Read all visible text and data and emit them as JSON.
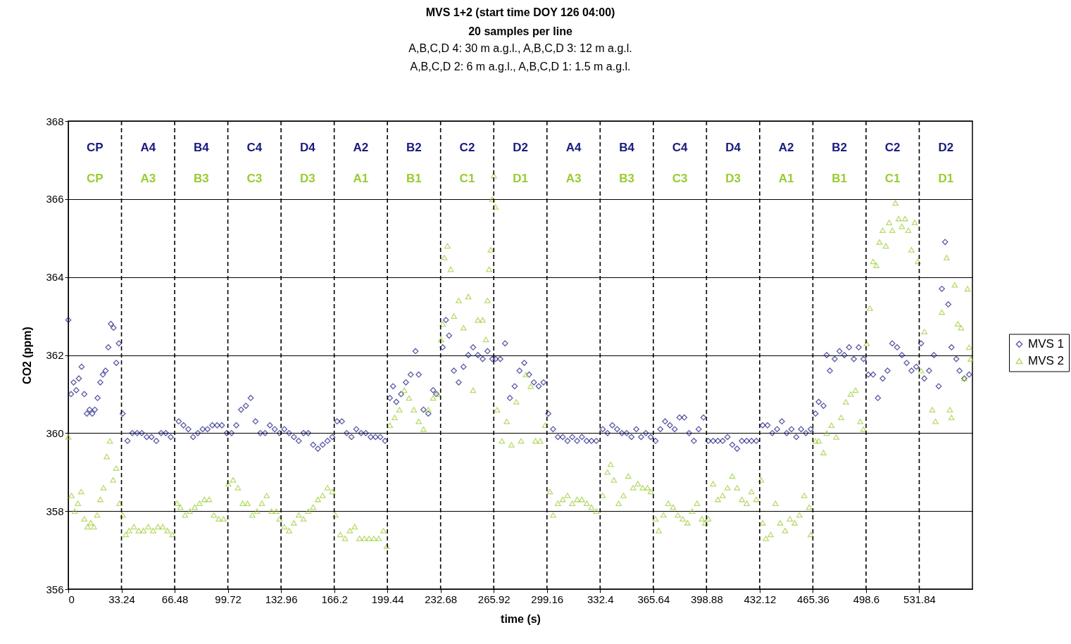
{
  "chart_data": {
    "type": "scatter",
    "title": "MVS 1+2 (start time DOY 126 04:00)\n20 samples per line",
    "subtitle": "A,B,C,D 4: 30 m a.g.l., A,B,C,D 3: 12 m a.g.l.\nA,B,C,D 2: 6 m a.g.l., A,B,C,D 1: 1.5 m a.g.l.",
    "xlabel": "time (s)",
    "ylabel": "CO2 (ppm)",
    "xlim": [
      0,
      565.08
    ],
    "ylim": [
      356,
      368
    ],
    "xticks": [
      0,
      33.24,
      66.48,
      99.72,
      132.96,
      166.2,
      199.44,
      232.68,
      265.92,
      299.16,
      332.4,
      365.64,
      398.88,
      432.12,
      465.36,
      498.6,
      531.84
    ],
    "yticks": [
      356,
      358,
      360,
      362,
      364,
      366,
      368
    ],
    "grid": "y",
    "legend": "right",
    "series": [
      {
        "name": "MVS 1",
        "color": "#1a1a80",
        "marker": "diamond",
        "x": [
          0,
          1.7,
          3.3,
          5,
          6.6,
          8.3,
          10,
          11.6,
          13.3,
          15,
          16.6,
          18.3,
          20,
          21.6,
          23.3,
          25,
          26.6,
          28.3,
          30,
          31.6,
          34,
          37,
          40,
          43,
          46,
          49,
          52,
          55,
          58,
          61,
          64,
          69,
          72,
          75,
          78,
          81,
          84,
          87,
          90,
          93,
          96,
          99,
          102,
          105,
          108,
          111,
          114,
          117,
          120,
          123,
          126,
          129,
          132,
          135,
          138,
          141,
          144,
          147,
          150,
          153,
          156,
          159,
          162,
          165,
          168,
          171,
          174,
          177,
          180,
          183,
          186,
          189,
          192,
          195,
          198,
          201,
          203,
          205,
          208,
          211,
          214,
          217,
          219,
          222,
          225,
          228,
          230,
          234,
          236,
          238,
          241,
          244,
          247,
          250,
          253,
          256,
          259,
          262,
          265,
          267,
          270,
          273,
          276,
          279,
          282,
          285,
          288,
          291,
          294,
          297,
          300,
          303,
          306,
          309,
          312,
          315,
          318,
          321,
          324,
          327,
          330,
          334,
          337,
          340,
          343,
          346,
          349,
          352,
          355,
          358,
          361,
          364,
          367,
          370,
          373,
          376,
          379,
          382,
          385,
          388,
          391,
          394,
          397,
          400,
          403,
          406,
          409,
          412,
          415,
          418,
          421,
          424,
          427,
          430,
          434,
          437,
          440,
          443,
          446,
          449,
          452,
          455,
          458,
          461,
          464,
          467,
          469,
          472,
          474,
          476,
          479,
          482,
          485,
          488,
          491,
          494,
          497,
          500,
          503,
          506,
          509,
          512,
          515,
          518,
          521,
          524,
          527,
          530,
          533,
          535,
          538,
          541,
          544,
          546,
          548,
          550,
          552,
          555,
          557,
          560,
          563
        ],
        "values": [
          362.9,
          361,
          361.3,
          361.1,
          361.4,
          361.7,
          361,
          360.5,
          360.6,
          360.5,
          360.6,
          360.9,
          361.3,
          361.5,
          361.6,
          362.2,
          362.8,
          362.7,
          361.8,
          362.3,
          360.5,
          359.8,
          360,
          360,
          360,
          359.9,
          359.9,
          359.8,
          360,
          360,
          359.9,
          360.3,
          360.2,
          360.1,
          359.9,
          360,
          360.1,
          360.1,
          360.2,
          360.2,
          360.2,
          360,
          360,
          360.2,
          360.6,
          360.7,
          360.9,
          360.3,
          360,
          360,
          360.2,
          360.1,
          360,
          360.1,
          360,
          359.9,
          359.8,
          360,
          360,
          359.7,
          359.6,
          359.7,
          359.8,
          359.9,
          360.3,
          360.3,
          360,
          359.9,
          360.1,
          360,
          360,
          359.9,
          359.9,
          359.9,
          359.8,
          360.9,
          361.2,
          360.8,
          361,
          361.3,
          361.5,
          362.1,
          361.5,
          360.6,
          360.5,
          361.1,
          361,
          362.2,
          362.9,
          362.5,
          361.6,
          361.3,
          361.7,
          362,
          362.2,
          362,
          361.9,
          362.1,
          361.9,
          361.9,
          361.9,
          362.3,
          360.9,
          361.2,
          361.6,
          361.8,
          361.5,
          361.3,
          361.2,
          361.3,
          360.5,
          360.1,
          359.9,
          359.9,
          359.8,
          359.9,
          359.8,
          359.9,
          359.8,
          359.8,
          359.8,
          360.1,
          360,
          360.2,
          360.1,
          360,
          360,
          359.9,
          360.1,
          359.9,
          360,
          359.9,
          359.8,
          360.1,
          360.3,
          360.2,
          360.1,
          360.4,
          360.4,
          360,
          359.8,
          360.1,
          360.4,
          359.8,
          359.8,
          359.8,
          359.8,
          359.9,
          359.7,
          359.6,
          359.8,
          359.8,
          359.8,
          359.8,
          360.2,
          360.2,
          360,
          360.1,
          360.3,
          360,
          360.1,
          359.9,
          360.1,
          360,
          360.1,
          360.5,
          360.8,
          360.7,
          362,
          361.6,
          361.9,
          362.1,
          362,
          362.2,
          361.9,
          362.2,
          361.9,
          361.5,
          361.5,
          360.9,
          361.4,
          361.6,
          362.3,
          362.2,
          362,
          361.8,
          361.6,
          361.7,
          362.3,
          361.4,
          361.6,
          362,
          361.2,
          363.7,
          364.9,
          363.3,
          362.2,
          361.9,
          361.6,
          361.4,
          361.5
        ]
      },
      {
        "name": "MVS 2",
        "color": "#99cc33",
        "marker": "triangle",
        "x": [
          0,
          2,
          4,
          6,
          8,
          10,
          12,
          14,
          16,
          18,
          20,
          22,
          24,
          26,
          28,
          30,
          32,
          34,
          36,
          38,
          41,
          44,
          47,
          50,
          53,
          56,
          59,
          62,
          65,
          68,
          70,
          73,
          76,
          79,
          82,
          85,
          88,
          91,
          94,
          97,
          100,
          103,
          106,
          109,
          112,
          115,
          118,
          121,
          124,
          127,
          130,
          132,
          135,
          138,
          141,
          144,
          147,
          150,
          153,
          156,
          159,
          162,
          165,
          167,
          170,
          173,
          176,
          179,
          182,
          185,
          188,
          191,
          194,
          197,
          199,
          201,
          204,
          207,
          210,
          213,
          216,
          219,
          222,
          225,
          228,
          231,
          233,
          234,
          235,
          237,
          239,
          241,
          244,
          247,
          250,
          253,
          256,
          259,
          261,
          262,
          263,
          264,
          265,
          266,
          267,
          268,
          271,
          274,
          277,
          280,
          283,
          286,
          289,
          292,
          295,
          298,
          301,
          303,
          306,
          309,
          312,
          315,
          318,
          321,
          324,
          327,
          330,
          334,
          337,
          339,
          341,
          344,
          347,
          350,
          353,
          356,
          359,
          362,
          364,
          367,
          369,
          372,
          375,
          378,
          381,
          384,
          387,
          390,
          393,
          396,
          398,
          400,
          403,
          406,
          409,
          412,
          415,
          418,
          421,
          424,
          427,
          430,
          433,
          434,
          436,
          439,
          442,
          445,
          448,
          451,
          454,
          457,
          460,
          463,
          464,
          467,
          469,
          472,
          474,
          477,
          480,
          483,
          486,
          489,
          492,
          495,
          497,
          499,
          501,
          503,
          505,
          507,
          509,
          511,
          513,
          515,
          517,
          519,
          521,
          523,
          525,
          527,
          529,
          531,
          533,
          535,
          540,
          542,
          546,
          549,
          551,
          552,
          554,
          556,
          558,
          560,
          562,
          563,
          564
        ],
        "values": [
          359.9,
          358.4,
          358,
          358.2,
          358.5,
          357.8,
          357.6,
          357.7,
          357.6,
          357.9,
          358.3,
          358.6,
          359.4,
          359.8,
          358.8,
          359.1,
          358.2,
          357.9,
          357.4,
          357.5,
          357.6,
          357.5,
          357.5,
          357.6,
          357.5,
          357.6,
          357.6,
          357.5,
          357.4,
          358.2,
          358.1,
          357.9,
          358,
          358.1,
          358.2,
          358.3,
          358.3,
          357.9,
          357.8,
          357.8,
          358.7,
          358.8,
          358.6,
          358.2,
          358.2,
          357.9,
          358,
          358.2,
          358.4,
          358,
          358,
          357.8,
          357.6,
          357.5,
          357.7,
          357.9,
          357.8,
          358,
          358.1,
          358.3,
          358.4,
          358.6,
          358.5,
          357.9,
          357.4,
          357.3,
          357.5,
          357.6,
          357.3,
          357.3,
          357.3,
          357.3,
          357.3,
          357.5,
          357.1,
          360.2,
          360.4,
          360.6,
          361.1,
          360.9,
          360.6,
          360.3,
          360.1,
          360.6,
          360.9,
          361,
          362.4,
          362.8,
          364.5,
          364.8,
          364.2,
          363,
          363.4,
          362.7,
          363.5,
          361.1,
          362.9,
          362.9,
          362.4,
          363.4,
          364.2,
          364.7,
          366,
          366.6,
          365.8,
          360.6,
          359.8,
          360.3,
          359.7,
          360.8,
          359.8,
          361.5,
          361.2,
          359.8,
          359.8,
          360.2,
          358.5,
          357.9,
          358.2,
          358.3,
          358.4,
          358.2,
          358.3,
          358.3,
          358.2,
          358.1,
          358,
          358.4,
          359,
          359.2,
          358.8,
          358.2,
          358.4,
          358.9,
          358.6,
          358.7,
          358.6,
          358.6,
          358.5,
          357.8,
          357.5,
          357.9,
          358.2,
          358.1,
          357.9,
          357.8,
          357.7,
          358,
          358.2,
          357.8,
          357.7,
          357.8,
          358.7,
          358.3,
          358.4,
          358.6,
          358.9,
          358.6,
          358.3,
          358.2,
          358.5,
          358.3,
          358.8,
          357.7,
          357.3,
          357.4,
          358.2,
          357.7,
          357.5,
          357.8,
          357.7,
          357.9,
          358.4,
          358.1,
          357.4,
          359.8,
          359.8,
          359.5,
          360,
          360.2,
          359.9,
          360.4,
          360.8,
          361,
          361.1,
          360.3,
          360.1,
          362.3,
          363.2,
          364.4,
          364.3,
          364.9,
          365.2,
          364.8,
          365.4,
          365.2,
          365.9,
          365.5,
          365.3,
          365.5,
          365.2,
          364.7,
          365.4,
          364.4,
          361.6,
          362.6,
          360.6,
          360.3,
          363.1,
          364.5,
          360.6,
          360.4,
          363.8,
          362.8,
          362.7,
          361.4,
          363.7,
          362.2,
          361.9
        ]
      }
    ],
    "ref_lines": [
      {
        "axis": "x",
        "value": 33.24,
        "line_style": "dashed",
        "color": "#000000"
      },
      {
        "axis": "x",
        "value": 66.48,
        "line_style": "dashed",
        "color": "#000000"
      },
      {
        "axis": "x",
        "value": 99.72,
        "line_style": "dashed",
        "color": "#000000"
      },
      {
        "axis": "x",
        "value": 132.96,
        "line_style": "dashed",
        "color": "#000000"
      },
      {
        "axis": "x",
        "value": 166.2,
        "line_style": "dashed",
        "color": "#000000"
      },
      {
        "axis": "x",
        "value": 199.44,
        "line_style": "dashed",
        "color": "#000000"
      },
      {
        "axis": "x",
        "value": 232.68,
        "line_style": "dashed",
        "color": "#000000"
      },
      {
        "axis": "x",
        "value": 265.92,
        "line_style": "dashed",
        "color": "#000000"
      },
      {
        "axis": "x",
        "value": 299.16,
        "line_style": "dashed",
        "color": "#000000"
      },
      {
        "axis": "x",
        "value": 332.4,
        "line_style": "dashed",
        "color": "#000000"
      },
      {
        "axis": "x",
        "value": 365.64,
        "line_style": "dashed",
        "color": "#000000"
      },
      {
        "axis": "x",
        "value": 398.88,
        "line_style": "dashed",
        "color": "#000000"
      },
      {
        "axis": "x",
        "value": 432.12,
        "line_style": "dashed",
        "color": "#000000"
      },
      {
        "axis": "x",
        "value": 465.36,
        "line_style": "dashed",
        "color": "#000000"
      },
      {
        "axis": "x",
        "value": 498.6,
        "line_style": "dashed",
        "color": "#000000"
      },
      {
        "axis": "x",
        "value": 531.84,
        "line_style": "dashed",
        "color": "#000000"
      }
    ],
    "annotations": [
      "CP",
      "A4",
      "B4",
      "C4",
      "D4",
      "A2",
      "B2",
      "C2",
      "D2",
      "A4",
      "B4",
      "C4",
      "D4",
      "A2",
      "B2",
      "C2",
      "D2",
      "CP",
      "A3",
      "B3",
      "C3",
      "D3",
      "A1",
      "B1",
      "C1",
      "D1",
      "A3",
      "B3",
      "C3",
      "D3",
      "A1",
      "B1",
      "C1",
      "D1"
    ]
  }
}
